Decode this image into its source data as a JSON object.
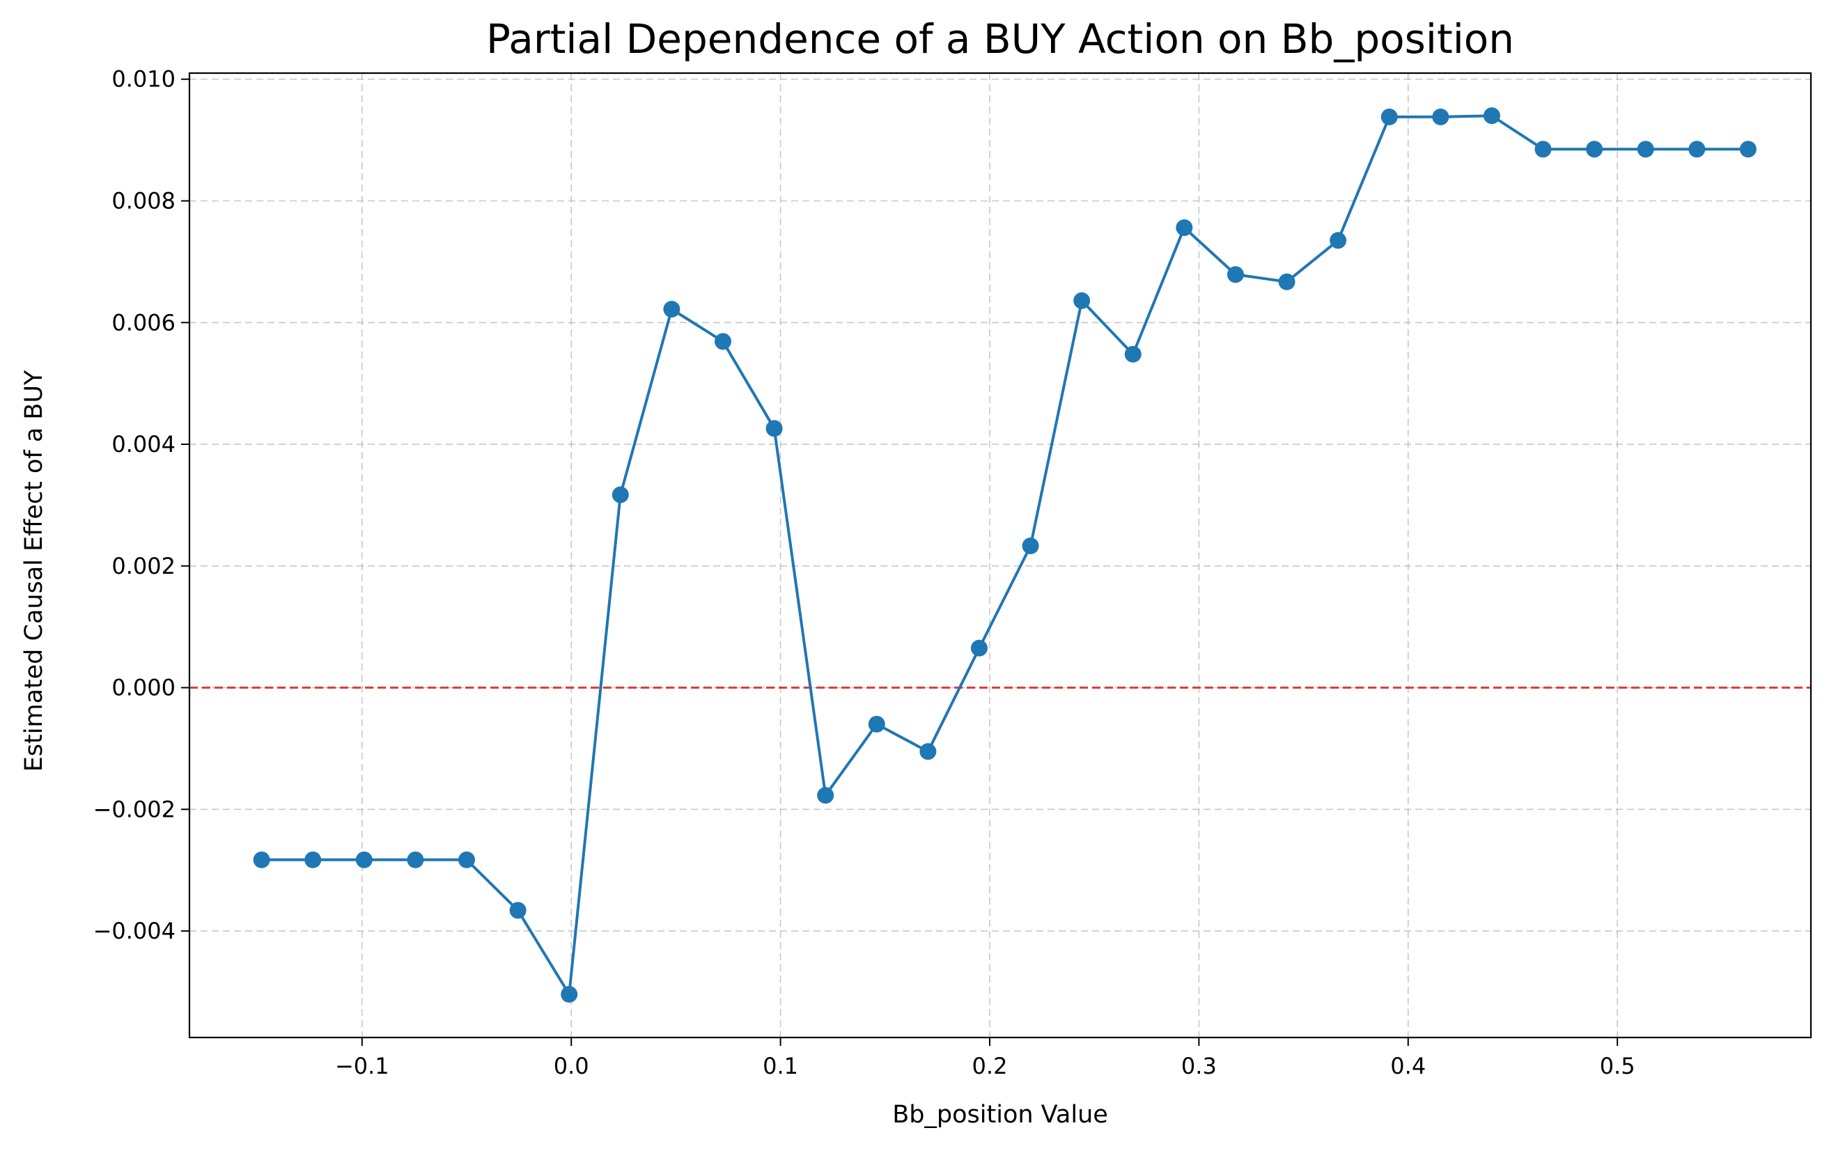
{
  "chart_data": {
    "type": "line",
    "title": "Partial Dependence of a BUY Action on Bb_position",
    "xlabel": "Bb_position Value",
    "ylabel": "Estimated Causal Effect of a BUY",
    "xlim": [
      -0.1825,
      0.5925
    ],
    "ylim": [
      -0.00575,
      0.0101
    ],
    "xticks": [
      -0.1,
      0.0,
      0.1,
      0.2,
      0.3,
      0.4,
      0.5
    ],
    "xtick_labels": [
      "−0.1",
      "0.0",
      "0.1",
      "0.2",
      "0.3",
      "0.4",
      "0.5"
    ],
    "yticks": [
      -0.004,
      -0.002,
      0.0,
      0.002,
      0.004,
      0.006,
      0.008,
      0.01
    ],
    "ytick_labels": [
      "−0.004",
      "−0.002",
      "0.000",
      "0.002",
      "0.004",
      "0.006",
      "0.008",
      "0.010"
    ],
    "grid": true,
    "reference_line": {
      "y": 0.0,
      "color": "#e8322f",
      "style": "dashed"
    },
    "series": [
      {
        "color": "#1f77b4",
        "marker": "circle",
        "x": [
          -0.148,
          -0.1235,
          -0.099,
          -0.0745,
          -0.05,
          -0.0255,
          -0.001,
          0.0235,
          0.048,
          0.0725,
          0.097,
          0.1215,
          0.146,
          0.1705,
          0.195,
          0.2195,
          0.244,
          0.2685,
          0.293,
          0.3175,
          0.342,
          0.3665,
          0.391,
          0.4155,
          0.44,
          0.4645,
          0.489,
          0.5135,
          0.538,
          0.5625
        ],
        "y": [
          -0.00283,
          -0.00283,
          -0.00283,
          -0.00283,
          -0.00283,
          -0.00366,
          -0.00504,
          0.00317,
          0.00622,
          0.00569,
          0.00426,
          -0.00177,
          -0.0006,
          -0.00105,
          0.00065,
          0.00233,
          0.00636,
          0.00548,
          0.00756,
          0.00679,
          0.00667,
          0.00735,
          0.00938,
          0.00938,
          0.0094,
          0.00885,
          0.00885,
          0.00885,
          0.00885,
          0.00885
        ]
      }
    ]
  }
}
